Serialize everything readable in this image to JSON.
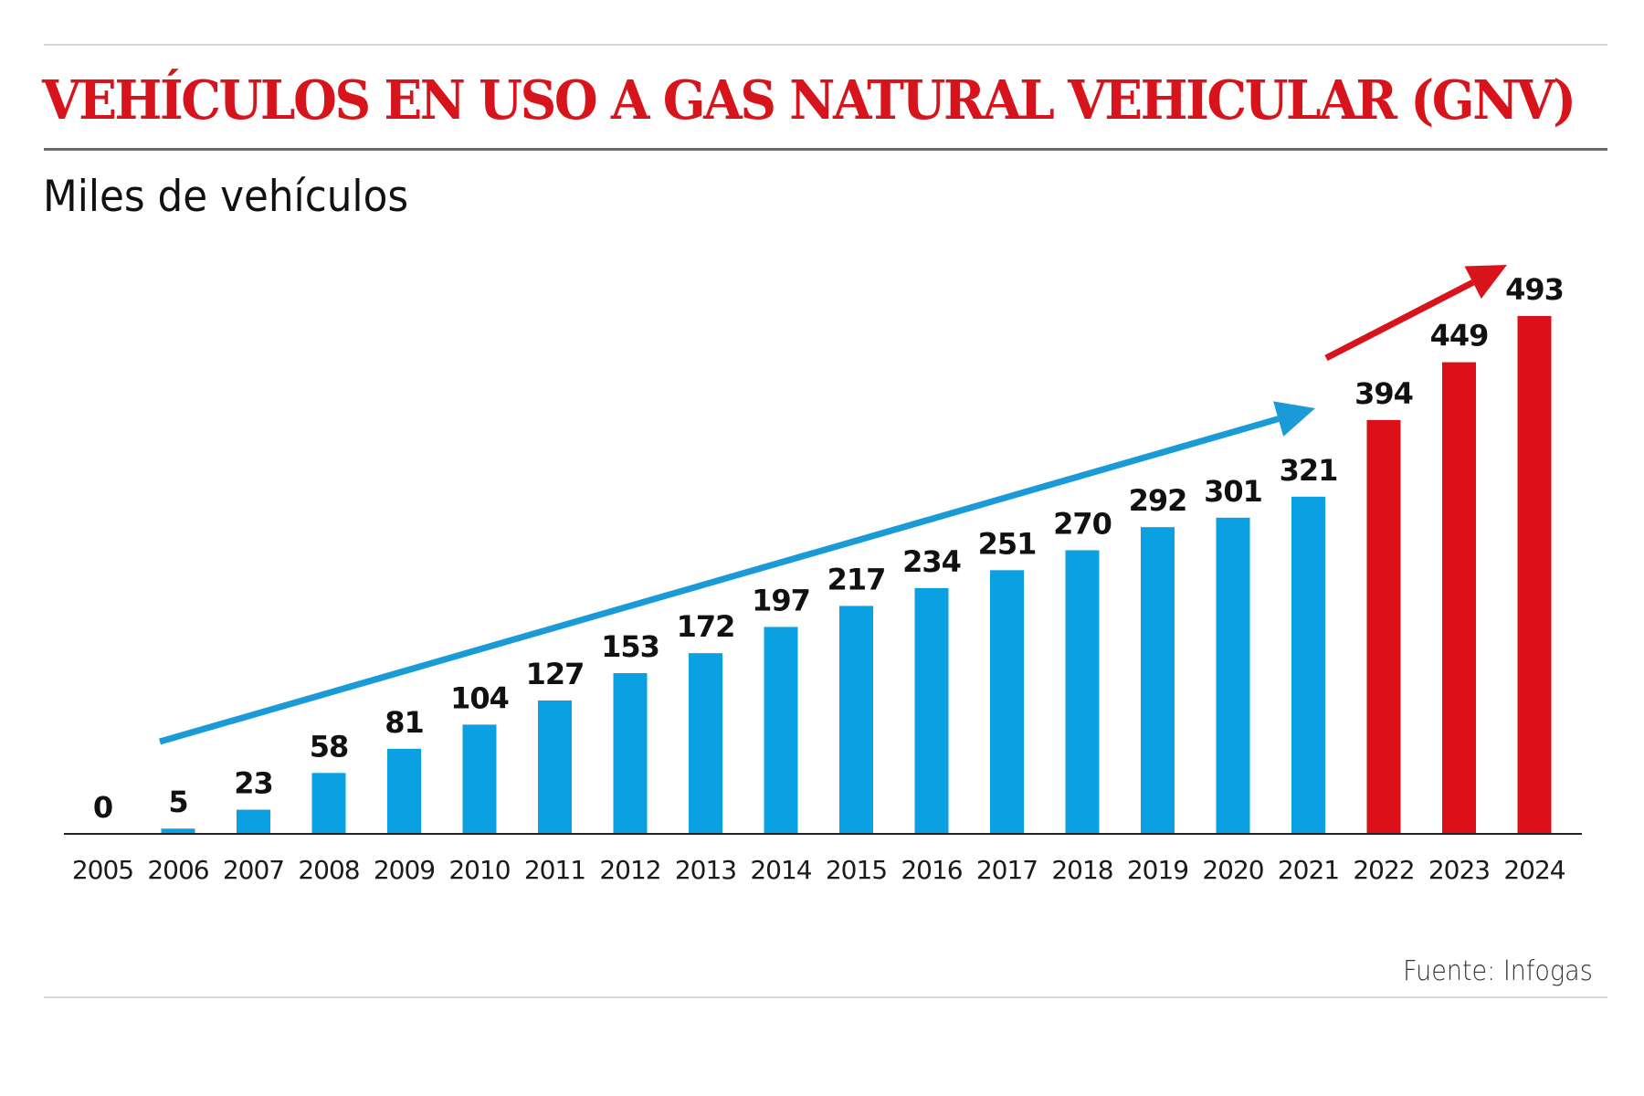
{
  "header": {
    "title": "VEHÍCULOS EN USO A GAS NATURAL VEHICULAR (GNV)",
    "subtitle": "Miles de vehículos"
  },
  "footer": {
    "source": "Fuente: Infogas"
  },
  "colors": {
    "title": "#d7141c",
    "blue_bar": "#0aa0e2",
    "red_bar": "#db1018",
    "blue_arrow": "#1a9bd7",
    "red_arrow": "#d7141c",
    "text": "#111111"
  },
  "chart_data": {
    "type": "bar",
    "title": "VEHÍCULOS EN USO A GAS NATURAL VEHICULAR (GNV)",
    "subtitle": "Miles de vehículos",
    "xlabel": "",
    "ylabel": "Miles de vehículos",
    "ylim": [
      0,
      500
    ],
    "grid": false,
    "legend": "none",
    "categories": [
      "2005",
      "2006",
      "2007",
      "2008",
      "2009",
      "2010",
      "2011",
      "2012",
      "2013",
      "2014",
      "2015",
      "2016",
      "2017",
      "2018",
      "2019",
      "2020",
      "2021",
      "2022",
      "2023",
      "2024"
    ],
    "values": [
      0,
      5,
      23,
      58,
      81,
      104,
      127,
      153,
      172,
      197,
      217,
      234,
      251,
      270,
      292,
      301,
      321,
      394,
      449,
      493
    ],
    "bar_colors": [
      "blue",
      "blue",
      "blue",
      "blue",
      "blue",
      "blue",
      "blue",
      "blue",
      "blue",
      "blue",
      "blue",
      "blue",
      "blue",
      "blue",
      "blue",
      "blue",
      "blue",
      "red",
      "red",
      "red"
    ],
    "annotations": [
      {
        "type": "trend-arrow",
        "color": "blue",
        "from_category": "2006",
        "to_category": "2021"
      },
      {
        "type": "trend-arrow",
        "color": "red",
        "from_category": "2022",
        "to_category": "2024"
      }
    ],
    "source": "Fuente: Infogas"
  }
}
